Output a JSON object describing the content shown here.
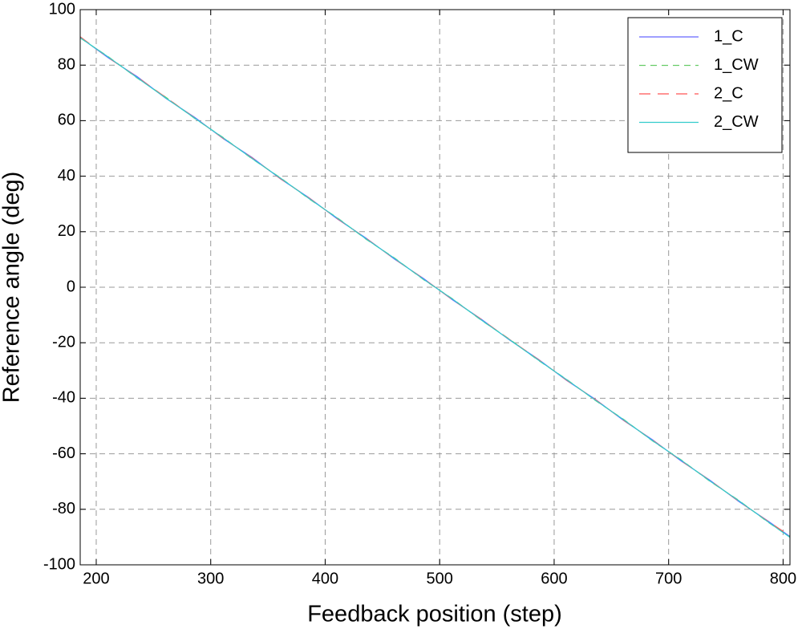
{
  "chart_data": {
    "type": "line",
    "xlabel": "Feedback position (step)",
    "ylabel": "Reference angle (deg)",
    "x": [
      186,
      211,
      236,
      261,
      286,
      311,
      336,
      361,
      386,
      411,
      436,
      461,
      486,
      511,
      536,
      561,
      586,
      611,
      636,
      661,
      686,
      711,
      736,
      761,
      786,
      806
    ],
    "series": [
      {
        "name": "1_C",
        "color": "#6666ff",
        "dash": "none",
        "values": [
          90,
          82.5,
          75.8,
          68.0,
          61.2,
          53.5,
          46.8,
          39.0,
          32.2,
          24.5,
          17.6,
          10.0,
          3.1,
          -4.5,
          -11.4,
          -19.0,
          -25.9,
          -33.6,
          -40.4,
          -48.1,
          -55.0,
          -62.6,
          -69.5,
          -77.1,
          -84.0,
          -89.8
        ]
      },
      {
        "name": "1_CW",
        "color": "#66cc66",
        "dash": "8 6",
        "values": [
          89.8,
          82.9,
          75.3,
          68.4,
          60.8,
          53.9,
          46.3,
          39.4,
          31.8,
          24.9,
          17.2,
          10.4,
          2.7,
          -4.1,
          -11.8,
          -18.7,
          -26.3,
          -33.2,
          -40.8,
          -47.7,
          -55.4,
          -62.2,
          -69.9,
          -76.7,
          -84.4,
          -90
        ]
      },
      {
        "name": "2_C",
        "color": "#ff5555",
        "dash": "14 9",
        "values": [
          90.2,
          82.6,
          75.6,
          68.3,
          61.0,
          53.6,
          46.6,
          39.1,
          32.1,
          24.6,
          17.5,
          10.1,
          3.0,
          -4.4,
          -11.5,
          -18.8,
          -26.0,
          -33.5,
          -40.5,
          -48.0,
          -55.1,
          -62.5,
          -69.6,
          -77.0,
          -84.1,
          -89.6
        ]
      },
      {
        "name": "2_CW",
        "color": "#33cccc",
        "dash": "none",
        "values": [
          89.9,
          82.8,
          75.4,
          68.1,
          60.9,
          53.8,
          46.4,
          39.3,
          31.9,
          24.8,
          17.3,
          10.3,
          2.8,
          -4.2,
          -11.7,
          -18.9,
          -26.2,
          -33.3,
          -40.7,
          -47.8,
          -55.3,
          -62.3,
          -69.8,
          -76.8,
          -84.3,
          -90.1
        ]
      }
    ],
    "xlim": [
      186,
      806
    ],
    "xticks": [
      200,
      300,
      400,
      500,
      600,
      700,
      800
    ],
    "ylim": [
      -100,
      100
    ],
    "yticks": [
      -100,
      -80,
      -60,
      -40,
      -20,
      0,
      20,
      40,
      60,
      80,
      100
    ],
    "grid": true,
    "legend": "upper right"
  }
}
